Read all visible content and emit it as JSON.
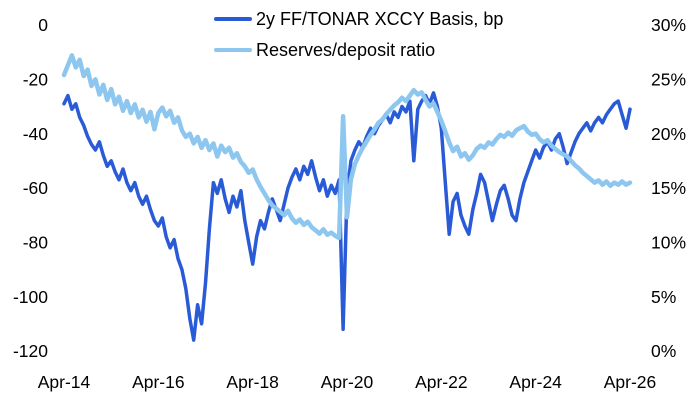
{
  "chart_data": {
    "type": "line",
    "title": "",
    "legend_position": "top-center",
    "grid": false,
    "x_monthly": {
      "start": "2014-04",
      "end": "2026-04",
      "step_months": 1
    },
    "x_tick_labels": [
      "Apr-14",
      "Apr-16",
      "Apr-18",
      "Apr-20",
      "Apr-22",
      "Apr-24",
      "Apr-26"
    ],
    "x_tick_month_index": [
      0,
      24,
      48,
      72,
      96,
      120,
      144
    ],
    "left_axis": {
      "tick_labels": [
        "0",
        "-20",
        "-40",
        "-60",
        "-80",
        "-100",
        "-120"
      ],
      "tick_values": [
        0,
        -20,
        -40,
        -60,
        -80,
        -100,
        -120
      ],
      "range": [
        -120,
        0
      ]
    },
    "right_axis": {
      "tick_labels": [
        "30%",
        "25%",
        "20%",
        "15%",
        "10%",
        "5%",
        "0%"
      ],
      "tick_values": [
        30,
        25,
        20,
        15,
        10,
        5,
        0
      ],
      "range": [
        0,
        30
      ]
    },
    "legend": [
      {
        "name": "2y FF/TONAR XCCY Basis, bp",
        "color": "#2a5bd7"
      },
      {
        "name": "Reserves/deposit ratio",
        "color": "#8dc6ef"
      }
    ],
    "series": [
      {
        "name": "2y FF/TONAR XCCY Basis, bp",
        "axis": "left",
        "color": "#2a5bd7",
        "stroke_width": 3.5,
        "values": [
          -29,
          -26,
          -31,
          -29,
          -34,
          -37,
          -41,
          -44,
          -46,
          -43,
          -48,
          -52,
          -50,
          -54,
          -57,
          -53,
          -58,
          -61,
          -58,
          -63,
          -66,
          -63,
          -68,
          -72,
          -74,
          -71,
          -78,
          -82,
          -79,
          -86,
          -90,
          -97,
          -108,
          -116,
          -103,
          -110,
          -95,
          -75,
          -58,
          -62,
          -57,
          -64,
          -69,
          -63,
          -67,
          -61,
          -72,
          -80,
          -88,
          -78,
          -72,
          -75,
          -69,
          -64,
          -68,
          -72,
          -66,
          -60,
          -56,
          -53,
          -57,
          -52,
          -55,
          -50,
          -56,
          -61,
          -57,
          -63,
          -59,
          -62,
          -57,
          -112,
          -62,
          -50,
          -46,
          -43,
          -45,
          -41,
          -38,
          -40,
          -37,
          -35,
          -33,
          -36,
          -32,
          -34,
          -30,
          -32,
          -28,
          -50,
          -31,
          -28,
          -26,
          -29,
          -25,
          -30,
          -38,
          -58,
          -77,
          -65,
          -62,
          -70,
          -74,
          -77,
          -68,
          -62,
          -55,
          -58,
          -65,
          -72,
          -66,
          -61,
          -59,
          -64,
          -70,
          -72,
          -64,
          -58,
          -54,
          -50,
          -46,
          -49,
          -45,
          -43,
          -46,
          -42,
          -40,
          -45,
          -51,
          -47,
          -43,
          -40,
          -38,
          -36,
          -39,
          -36,
          -34,
          -36,
          -33,
          -31,
          -29,
          -28,
          -33,
          -38,
          -31
        ]
      },
      {
        "name": "Reserves/deposit ratio",
        "axis": "right",
        "color": "#8dc6ef",
        "stroke_width": 4.5,
        "values": [
          25.4,
          26.3,
          27.2,
          26.1,
          26.8,
          25.3,
          25.9,
          24.4,
          25.0,
          23.6,
          24.5,
          23.1,
          24.1,
          22.7,
          23.4,
          22.1,
          23.0,
          21.9,
          22.7,
          21.5,
          22.2,
          21.1,
          22.0,
          20.4,
          21.9,
          22.4,
          21.6,
          22.1,
          21.0,
          21.5,
          20.3,
          19.7,
          20.0,
          19.1,
          19.7,
          18.7,
          19.4,
          18.5,
          19.1,
          17.9,
          18.9,
          18.3,
          18.7,
          17.8,
          18.2,
          17.4,
          17.0,
          16.4,
          16.7,
          15.8,
          15.1,
          14.5,
          13.9,
          13.4,
          13.1,
          12.8,
          12.5,
          12.9,
          12.2,
          11.8,
          12.1,
          11.6,
          11.9,
          11.4,
          11.1,
          10.8,
          11.2,
          10.7,
          10.9,
          10.6,
          10.4,
          21.6,
          12.3,
          15.8,
          17.2,
          18.0,
          18.7,
          19.3,
          19.9,
          20.4,
          21.0,
          21.3,
          21.8,
          22.2,
          22.6,
          22.9,
          23.3,
          23.0,
          23.5,
          24.0,
          23.6,
          23.8,
          23.1,
          22.5,
          22.8,
          22.0,
          21.2,
          20.2,
          19.2,
          18.4,
          18.8,
          17.9,
          18.2,
          17.6,
          18.0,
          18.6,
          18.9,
          18.7,
          19.2,
          19.0,
          19.5,
          19.9,
          19.7,
          20.1,
          19.8,
          20.3,
          20.5,
          20.7,
          20.2,
          19.9,
          20.0,
          19.5,
          19.2,
          19.4,
          18.9,
          18.6,
          18.3,
          18.1,
          17.9,
          17.5,
          17.1,
          16.8,
          16.4,
          16.1,
          15.8,
          15.5,
          15.7,
          15.3,
          15.6,
          15.2,
          15.5,
          15.3,
          15.6,
          15.3,
          15.5
        ]
      }
    ]
  }
}
